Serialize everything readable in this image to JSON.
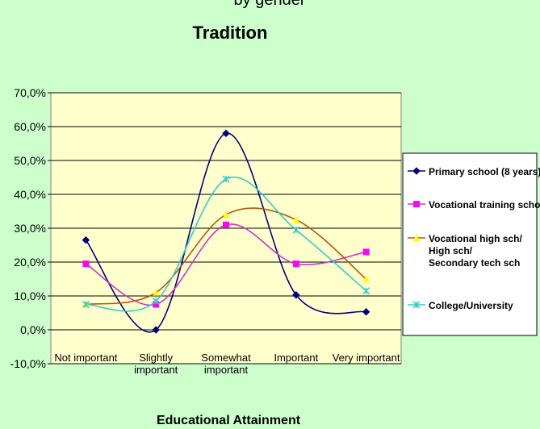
{
  "chart_data": {
    "type": "line",
    "subtitle": "by gender",
    "title": "Tradition",
    "x_label": "Educational Attainment",
    "categories": [
      "Not important",
      "Slightly\nimportant",
      "Somewhat\nimportant",
      "Important",
      "Very important"
    ],
    "ylim": [
      -10,
      70
    ],
    "yticks": [
      {
        "value": -10,
        "label": "-10,0%"
      },
      {
        "value": 0,
        "label": "0,0%"
      },
      {
        "value": 10,
        "label": "10,0%"
      },
      {
        "value": 20,
        "label": "20,0%"
      },
      {
        "value": 30,
        "label": "30,0%"
      },
      {
        "value": 40,
        "label": "40,0%"
      },
      {
        "value": 50,
        "label": "50,0%"
      },
      {
        "value": 60,
        "label": "60,0%"
      },
      {
        "value": 70,
        "label": "70,0%"
      }
    ],
    "grid": true,
    "smooth": true,
    "legend": "right",
    "series": [
      {
        "name": "Primary school (8 years)",
        "color": "#000080",
        "line_color": "#000080",
        "marker": "diamond",
        "values": [
          26.5,
          0,
          58,
          10.3,
          5.3
        ]
      },
      {
        "name": "Vocational training school",
        "color": "#ff00ff",
        "line_color": "#cc33cc",
        "marker": "square",
        "values": [
          19.5,
          7.5,
          31,
          19.5,
          23
        ]
      },
      {
        "name": "Vocational high sch/\nHigh sch/\nSecondary tech sch",
        "color": "#ffff00",
        "line_color": "#b8540f",
        "marker": "triangle",
        "values": [
          7.5,
          11,
          34,
          32.5,
          15
        ]
      },
      {
        "name": "College/University",
        "color": "#33cccc",
        "line_color": "#33cccc",
        "marker": "x",
        "values": [
          7.5,
          8.5,
          44.5,
          29.5,
          11.5
        ]
      }
    ]
  }
}
